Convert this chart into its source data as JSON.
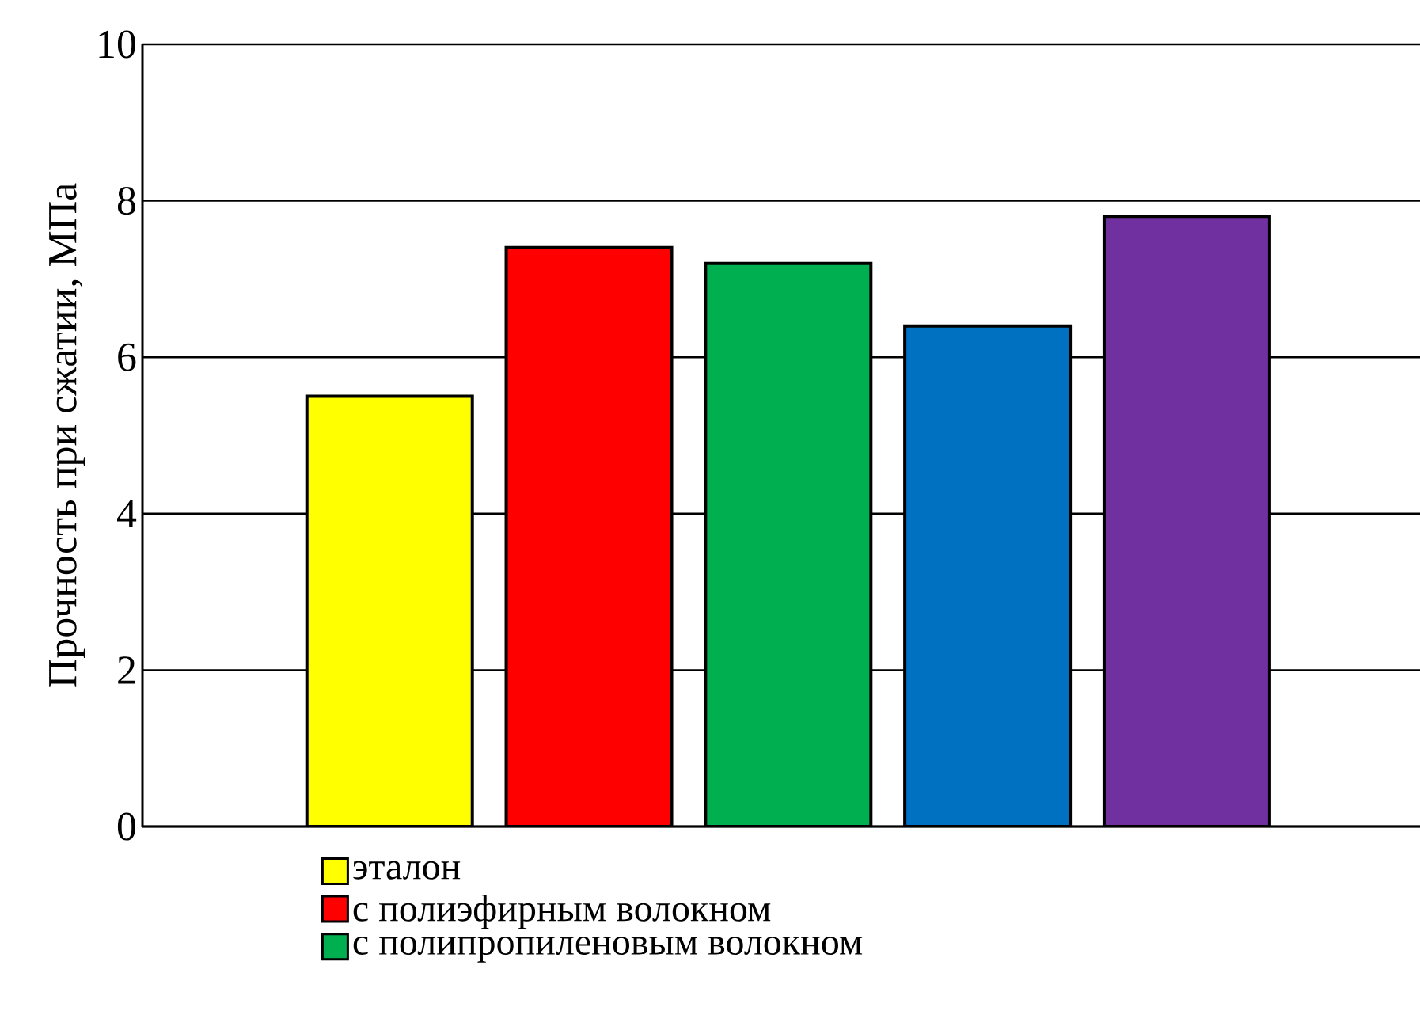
{
  "chart_data": {
    "type": "bar",
    "ylabel": "Прочность при сжатии, МПа",
    "categories": [
      null
    ],
    "series": [
      {
        "name": "эталон",
        "color": "#ffff00",
        "values": [
          5.5
        ]
      },
      {
        "name": "с полиэфирным волокном",
        "color": "#ff0000",
        "values": [
          7.4
        ]
      },
      {
        "name": "с полипропиленовым волокном",
        "color": "#00b050",
        "values": [
          7.2
        ]
      },
      {
        "color": "#0070c0",
        "values": [
          6.4
        ]
      },
      {
        "color": "#7030a0",
        "values": [
          7.8
        ]
      }
    ],
    "ylim": [
      0,
      10
    ],
    "yticks": [
      0,
      2,
      4,
      6,
      8,
      10
    ],
    "grid": "y",
    "legend": "bottom"
  }
}
